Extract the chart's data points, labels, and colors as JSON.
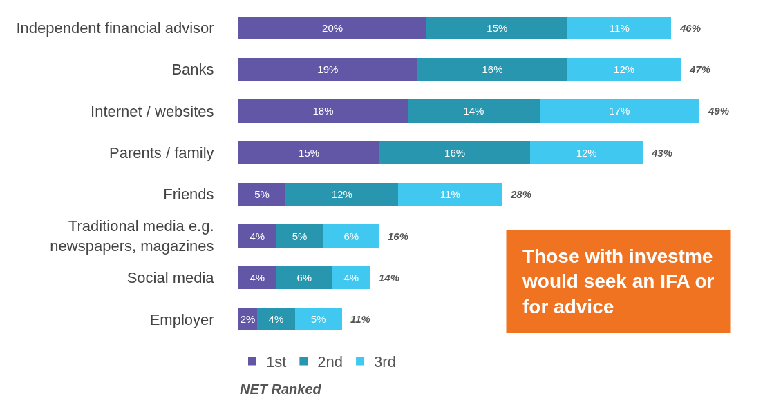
{
  "chart_data": {
    "type": "bar",
    "orientation": "horizontal",
    "stacked": true,
    "categories": [
      "Independent financial advisor",
      "Banks",
      "Internet / websites",
      "Parents / family",
      "Friends",
      "Traditional media e.g.\nnewspapers, magazines",
      "Social media",
      "Employer"
    ],
    "series": [
      {
        "name": "1st",
        "color": "#6157a6",
        "values": [
          20,
          19,
          18,
          15,
          5,
          4,
          4,
          2
        ],
        "value_labels": [
          "20%",
          "19%",
          "18%",
          "15%",
          "5%",
          "4%",
          "4%",
          "2%"
        ]
      },
      {
        "name": "2nd",
        "color": "#2896ae",
        "values": [
          15,
          16,
          14,
          16,
          12,
          5,
          6,
          4
        ],
        "value_labels": [
          "15%",
          "16%",
          "14%",
          "16%",
          "12%",
          "5%",
          "6%",
          "4%"
        ]
      },
      {
        "name": "3rd",
        "color": "#40c8f0",
        "values": [
          11,
          12,
          17,
          12,
          11,
          6,
          4,
          5
        ],
        "value_labels": [
          "11%",
          "12%",
          "17%",
          "12%",
          "11%",
          "6%",
          "4%",
          "5%"
        ]
      }
    ],
    "totals": [
      "46%",
      "47%",
      "49%",
      "43%",
      "28%",
      "16%",
      "14%",
      "11%"
    ],
    "legend": "bottom left",
    "annotations": [
      "NET Ranked",
      "Those with investme\nwould seek an IFA or\nfor advice"
    ]
  }
}
